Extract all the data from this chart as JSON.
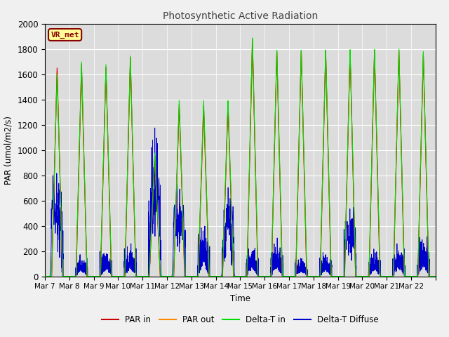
{
  "title": "Photosynthetic Active Radiation",
  "ylabel": "PAR (umol/m2/s)",
  "xlabel": "Time",
  "ylim": [
    0,
    2000
  ],
  "annotation_text": "VR_met",
  "annotation_color": "#8b0000",
  "annotation_bg": "#ffff99",
  "annotation_border": "#8b0000",
  "legend_labels": [
    "PAR in",
    "PAR out",
    "Delta-T in",
    "Delta-T Diffuse"
  ],
  "legend_colors": [
    "#cc0000",
    "#ff8800",
    "#00dd00",
    "#0000cc"
  ],
  "xtick_labels": [
    "Mar 7",
    "Mar 8",
    "Mar 9",
    "Mar 10",
    "Mar 11",
    "Mar 12",
    "Mar 13",
    "Mar 14",
    "Mar 15",
    "Mar 16",
    "Mar 17",
    "Mar 18",
    "Mar 19",
    "Mar 20",
    "Mar 21",
    "Mar 22"
  ],
  "fig_bg": "#f0f0f0",
  "plot_bg": "#dcdcdc",
  "grid_color": "#ffffff",
  "num_days": 16
}
